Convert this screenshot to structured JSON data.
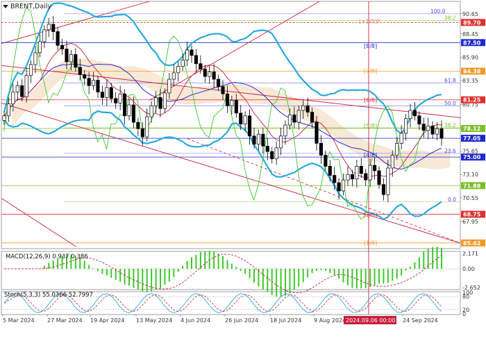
{
  "chart_data": [
    {
      "type": "candlestick",
      "title": "BRENT,Daily",
      "ylim": [
        65.0,
        92.0
      ],
      "y_ticks": [
        "90.65",
        "88.45",
        "85.90",
        "83.35",
        "80.75",
        "78.20",
        "75.65",
        "73.10",
        "70.55",
        "67.95"
      ],
      "x_labels": [
        "5 Mar 2024",
        "27 Mar 2024",
        "19 Apr 2024",
        "13 May 2024",
        "4 Jun 2024",
        "26 Jun 2024",
        "18 Jul 2024",
        "9 Aug 2024",
        "2024.09.06 00:00",
        "24 Sep 2024"
      ],
      "cursor_label": "2024.09.06 00:00",
      "price_levels": [
        {
          "value": "89.70",
          "color": "#e03030"
        },
        {
          "value": "87.50",
          "color": "#1d2bd0"
        },
        {
          "value": "84.38",
          "color": "#f09a28"
        },
        {
          "value": "81.25",
          "color": "#e03030"
        },
        {
          "value": "78.12",
          "color": "#7cbf2a"
        },
        {
          "value": "77.05",
          "color": "#1d2bd0"
        },
        {
          "value": "75.00",
          "color": "#1d2bd0"
        },
        {
          "value": "71.88",
          "color": "#7cbf2a"
        },
        {
          "value": "68.75",
          "color": "#e03030"
        },
        {
          "value": "65.62",
          "color": "#f09a28"
        }
      ],
      "murrey_labels": [
        "[+1/8]P",
        "[8/8]",
        "[7/8]",
        "[6/8]",
        "[5/8]",
        "[4/8]",
        "[2/8]",
        "[1/8]"
      ],
      "fibo_labels": [
        "100.0",
        "38.2",
        "61.8",
        "50.0",
        "38.2",
        "23.6",
        "0.0"
      ],
      "close": [
        79.5,
        80.8,
        82.1,
        82.8,
        81.6,
        83.9,
        85.1,
        86.4,
        87.6,
        88.9,
        89.5,
        88.7,
        87.2,
        86.8,
        85.4,
        86.2,
        84.8,
        84.0,
        83.6,
        82.8,
        83.4,
        82.1,
        81.5,
        82.6,
        81.4,
        80.9,
        81.9,
        79.5,
        80.7,
        78.8,
        78.1,
        77.2,
        79.4,
        80.6,
        81.5,
        80.3,
        82.0,
        83.5,
        84.2,
        84.9,
        85.6,
        86.7,
        86.1,
        85.2,
        84.6,
        83.8,
        84.3,
        83.5,
        82.7,
        81.9,
        80.6,
        81.2,
        79.8,
        78.6,
        79.5,
        77.3,
        76.4,
        77.5,
        76.2,
        75.6,
        74.8,
        76.0,
        77.3,
        78.5,
        79.6,
        78.8,
        80.1,
        80.6,
        79.9,
        78.8,
        76.5,
        75.2,
        74.0,
        73.0,
        72.2,
        71.3,
        72.5,
        73.1,
        72.6,
        74.0,
        73.2,
        72.5,
        74.1,
        73.5,
        72.0,
        70.9,
        73.8,
        75.2,
        76.5,
        77.6,
        79.2,
        80.1,
        79.5,
        78.6,
        77.9,
        78.4,
        77.5,
        78.1,
        77.05
      ],
      "macd_label": "MACD(12,26,9) 0.937 0.386",
      "macd_ticks": [
        "2.171",
        "0.00",
        "-2.652"
      ],
      "stoch_label": "Stoch(5,3,3) 55.0366 52.7997",
      "stoch_ticks": [
        "100",
        "80",
        "20",
        "0"
      ]
    }
  ]
}
